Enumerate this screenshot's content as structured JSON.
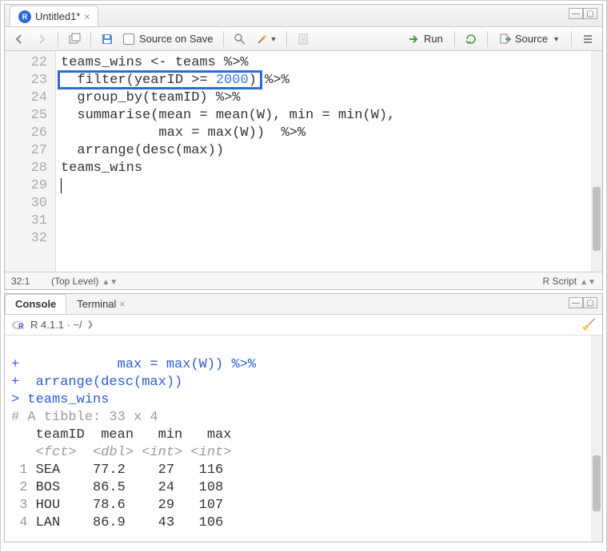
{
  "file_tab": {
    "name": "Untitled1*",
    "badge": "R"
  },
  "toolbar": {
    "source_on_save": "Source on Save",
    "run": "Run",
    "source": "Source"
  },
  "editor": {
    "lines_start": 22,
    "lines": [
      "",
      "teams_wins <- teams %>%",
      "  filter(yearID >= 2000) %>%",
      "  group_by(teamID) %>%",
      "  summarise(mean = mean(W), min = min(W),",
      "            max = max(W))  %>%",
      "  arrange(desc(max))",
      "",
      "",
      "teams_wins",
      ""
    ],
    "highlight_line_index": 1,
    "num_literal": "2000"
  },
  "status": {
    "pos": "32:1",
    "scope": "(Top Level)",
    "lang": "R Script"
  },
  "console_tabs": {
    "console": "Console",
    "terminal": "Terminal"
  },
  "console_info": {
    "version": "R 4.1.1 · ~/"
  },
  "console": {
    "lines": [
      {
        "prefix": "+",
        "text": "            max = max(W)) %>%",
        "cls": "cblue"
      },
      {
        "prefix": "+",
        "text": "  arrange(desc(max))",
        "cls": "cblue"
      },
      {
        "prefix": ">",
        "text": " teams_wins",
        "cls": "cblue"
      }
    ],
    "tibble_header": "# A tibble: 33 x 4",
    "col_header": "   teamID  mean   min   max",
    "type_row": "   <fct>  <dbl> <int> <int>",
    "rows": [
      {
        "n": "1",
        "team": "SEA",
        "mean": "77.2",
        "min": "27",
        "max": "116"
      },
      {
        "n": "2",
        "team": "BOS",
        "mean": "86.5",
        "min": "24",
        "max": "108"
      },
      {
        "n": "3",
        "team": "HOU",
        "mean": "78.6",
        "min": "29",
        "max": "107"
      },
      {
        "n": "4",
        "team": "LAN",
        "mean": "86.9",
        "min": "43",
        "max": "106"
      }
    ]
  },
  "colors": {
    "highlight_border": "#2b6bd4",
    "code_blue": "#3a7bd5",
    "console_blue": "#2b5cd4",
    "gray": "#9a9a9a"
  }
}
